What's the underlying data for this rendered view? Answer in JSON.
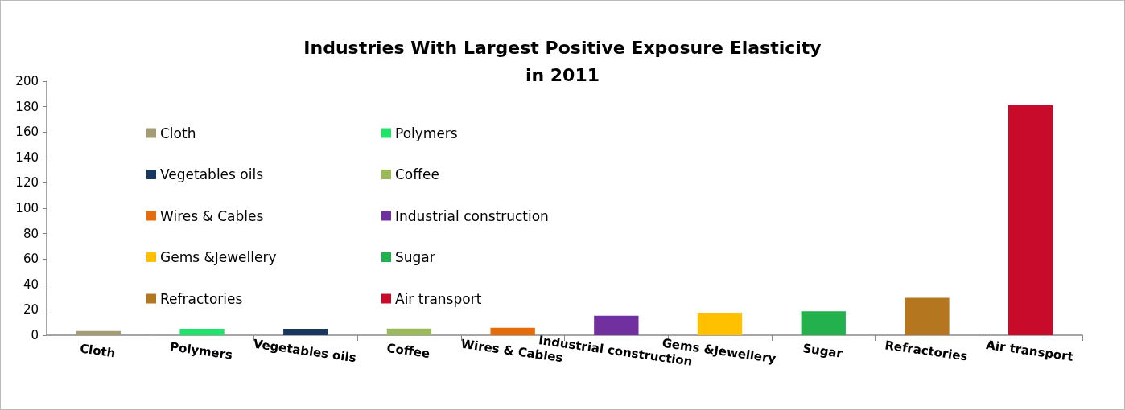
{
  "chart_data": {
    "type": "bar",
    "title": "Industries With Largest Positive Exposure Elasticity\nin 2011",
    "categories": [
      "Cloth",
      "Polymers",
      "Vegetables oils",
      "Coffee",
      "Wires & Cables",
      "Industrial construction",
      "Gems &Jewellery",
      "Sugar",
      "Refractories",
      "Air transport"
    ],
    "series": [
      {
        "name": "Cloth",
        "color": "#a59c73",
        "values": [
          3.4,
          null,
          null,
          null,
          null,
          null,
          null,
          null,
          null,
          null
        ]
      },
      {
        "name": "Polymers",
        "color": "#1ee46a",
        "values": [
          null,
          5,
          null,
          null,
          null,
          null,
          null,
          null,
          null,
          null
        ]
      },
      {
        "name": "Vegetables oils",
        "color": "#17375e",
        "values": [
          null,
          null,
          5,
          null,
          null,
          null,
          null,
          null,
          null,
          null
        ]
      },
      {
        "name": "Coffee",
        "color": "#9bbb59",
        "values": [
          null,
          null,
          null,
          5.3,
          null,
          null,
          null,
          null,
          null,
          null
        ]
      },
      {
        "name": "Wires & Cables",
        "color": "#e46c0a",
        "values": [
          null,
          null,
          null,
          null,
          5.9,
          null,
          null,
          null,
          null,
          null
        ]
      },
      {
        "name": "Industrial construction",
        "color": "#7030a0",
        "values": [
          null,
          null,
          null,
          null,
          null,
          15.3,
          null,
          null,
          null,
          null
        ]
      },
      {
        "name": "Gems &Jewellery",
        "color": "#ffc000",
        "values": [
          null,
          null,
          null,
          null,
          null,
          null,
          17.8,
          null,
          null,
          null
        ]
      },
      {
        "name": "Sugar",
        "color": "#22b14c",
        "values": [
          null,
          null,
          null,
          null,
          null,
          null,
          null,
          18.8,
          null,
          null
        ]
      },
      {
        "name": "Refractories",
        "color": "#b47720",
        "values": [
          null,
          null,
          null,
          null,
          null,
          null,
          null,
          null,
          29.5,
          null
        ]
      },
      {
        "name": "Air transport",
        "color": "#c80a2b",
        "values": [
          null,
          null,
          null,
          null,
          null,
          null,
          null,
          null,
          null,
          181
        ]
      }
    ],
    "ylim": [
      0,
      200
    ],
    "yticks": [
      0,
      20,
      40,
      60,
      80,
      100,
      120,
      140,
      160,
      180,
      200
    ],
    "grid": false,
    "legend": "left"
  }
}
